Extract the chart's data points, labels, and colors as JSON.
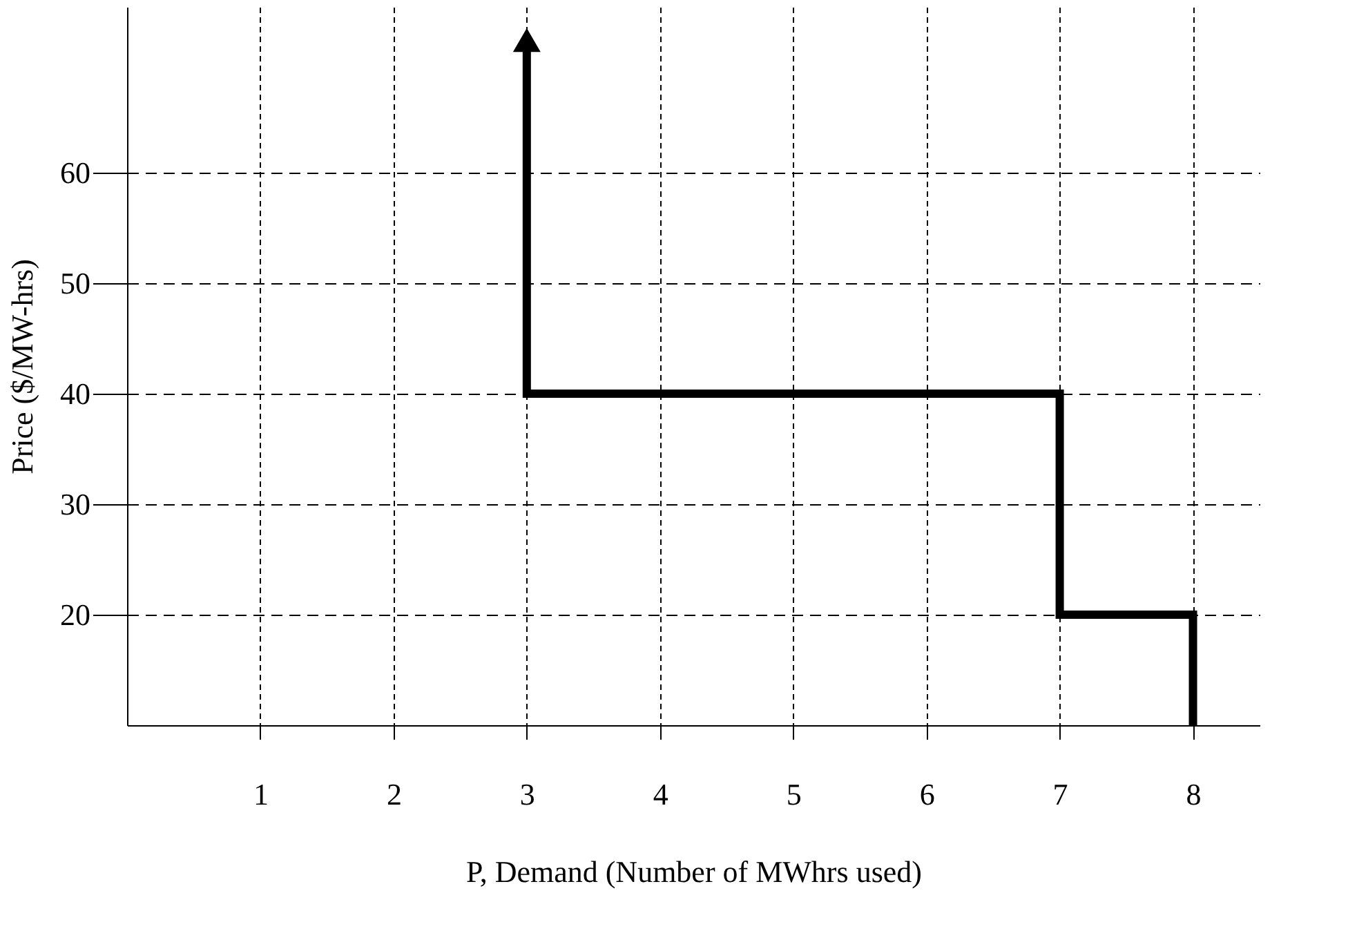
{
  "chart_data": {
    "type": "line",
    "xlabel": "P, Demand (Number of MWhrs used)",
    "ylabel": "Price ($/MW-hrs)",
    "series": [
      {
        "x": [
          3,
          3,
          7,
          7,
          8,
          8
        ],
        "values": [
          72,
          40,
          40,
          20,
          20,
          10
        ],
        "color": "#000000"
      }
    ],
    "xlim": [
      0,
      8.5
    ],
    "xticks": [
      1,
      2,
      3,
      4,
      5,
      6,
      7,
      8
    ],
    "ylim": [
      10,
      75
    ],
    "yticks": [
      20,
      30,
      40,
      50,
      60
    ],
    "grid": true,
    "line_style": "solid",
    "marker": "none"
  }
}
